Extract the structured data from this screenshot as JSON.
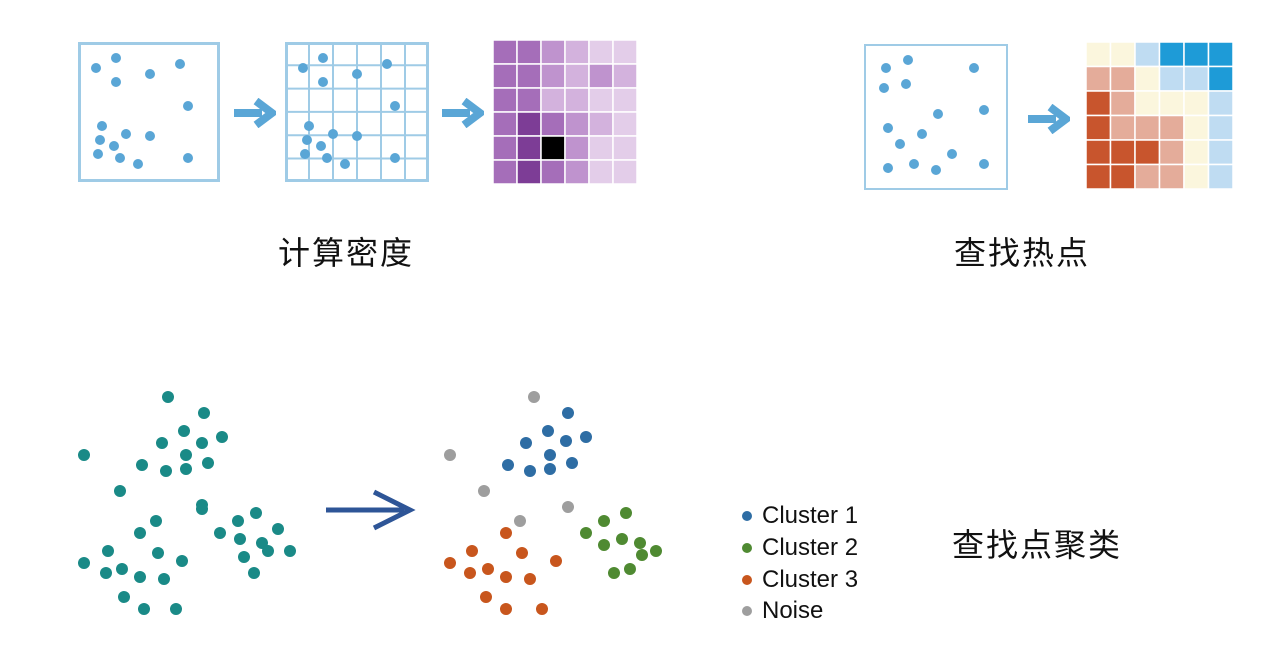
{
  "labels": {
    "density": "计算密度",
    "hotspot": "查找热点",
    "cluster": "查找点聚类"
  },
  "legend": [
    {
      "label": "Cluster 1",
      "color": "#2e6da4"
    },
    {
      "label": "Cluster 2",
      "color": "#4f8a32"
    },
    {
      "label": "Cluster 3",
      "color": "#c8561d"
    },
    {
      "label": "Noise",
      "color": "#9e9e9e"
    }
  ],
  "colors": {
    "frame": "#9fcbe6",
    "point": "#5aa6d6",
    "arrow_light": "#5aa6d6",
    "arrow_dark": "#2e5597",
    "teal": "#1a8a87",
    "density_shades": [
      "#efe3f2",
      "#e3cde9",
      "#d3b2dd",
      "#bf93ce",
      "#a56eb9",
      "#7d3d96"
    ],
    "hotspot_shades": [
      "#1e9bd7",
      "#bfdcf2",
      "#fbf6dd",
      "#e4ac9a",
      "#c8552d"
    ]
  },
  "density_grid": [
    [
      4,
      4,
      3,
      2,
      1,
      1
    ],
    [
      4,
      4,
      3,
      2,
      3,
      2
    ],
    [
      4,
      4,
      2,
      2,
      1,
      1
    ],
    [
      4,
      5,
      4,
      3,
      2,
      1
    ],
    [
      4,
      5,
      6,
      3,
      1,
      1
    ],
    [
      4,
      5,
      4,
      3,
      1,
      1
    ]
  ],
  "hotspot_grid": [
    [
      2,
      2,
      1,
      0,
      0,
      0
    ],
    [
      3,
      3,
      2,
      1,
      1,
      0
    ],
    [
      4,
      3,
      2,
      2,
      2,
      1
    ],
    [
      4,
      3,
      3,
      3,
      2,
      1
    ],
    [
      4,
      4,
      4,
      3,
      2,
      1
    ],
    [
      4,
      4,
      3,
      3,
      2,
      1
    ]
  ]
}
